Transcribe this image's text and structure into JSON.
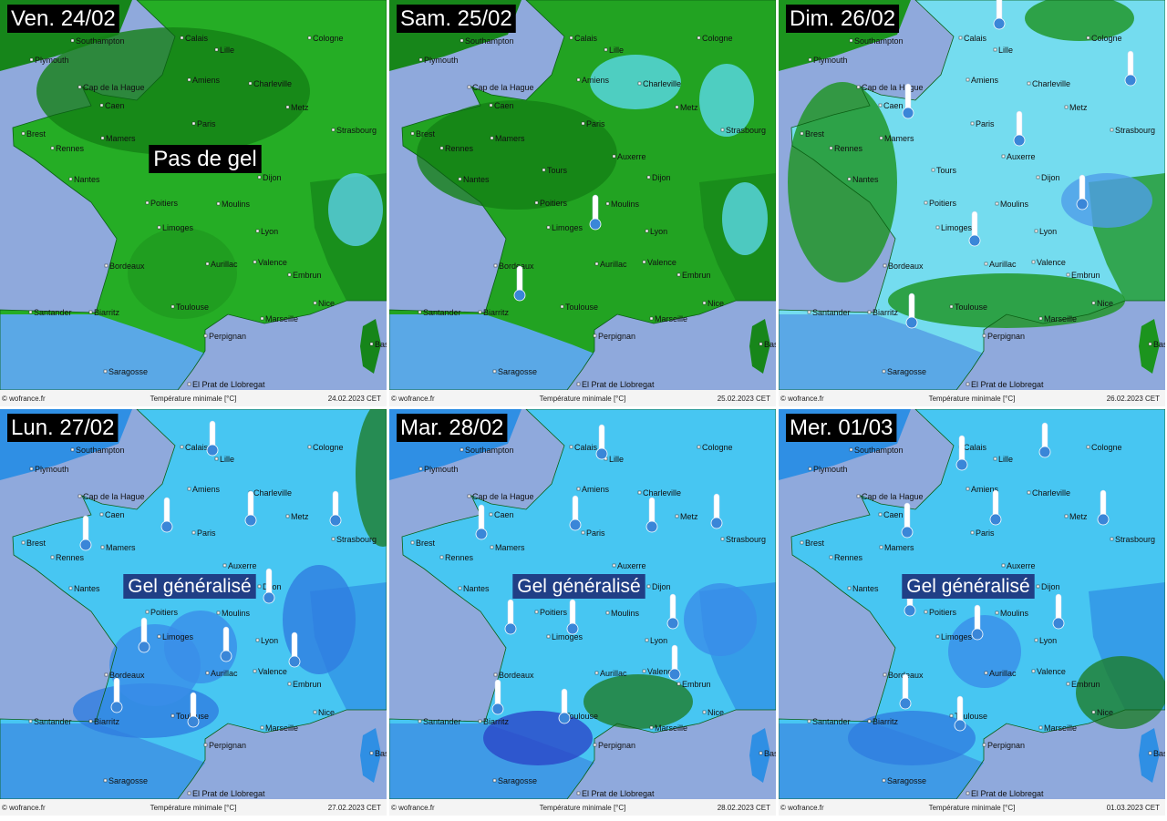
{
  "panels": [
    {
      "date": "Ven. 24/02",
      "footer_date": "24.02.2023 CET",
      "annotation": "Pas de gel"
    },
    {
      "date": "Sam. 25/02",
      "footer_date": "25.02.2023 CET"
    },
    {
      "date": "Dim. 26/02",
      "footer_date": "26.02.2023 CET"
    },
    {
      "date": "Lun. 27/02",
      "footer_date": "27.02.2023 CET",
      "annotation": "Gel généralisé"
    },
    {
      "date": "Mar. 28/02",
      "footer_date": "28.02.2023 CET",
      "annotation": "Gel généralisé"
    },
    {
      "date": "Mer. 01/03",
      "footer_date": "01.03.2023 CET",
      "annotation": "Gel généralisé"
    }
  ],
  "footer": {
    "credit": "© wofrance.fr",
    "legend": "Température minimale [°C]"
  },
  "cities": [
    "Southampton",
    "Plymouth",
    "Calais",
    "Lille",
    "Cologne",
    "Amiens",
    "Charleville",
    "Cap de la Hague",
    "Caen",
    "Metz",
    "Paris",
    "Brest",
    "Rennes",
    "Mamers",
    "Strasbourg",
    "Tours",
    "Auxerre",
    "Nantes",
    "Dijon",
    "Poitiers",
    "Moulins",
    "Limoges",
    "Lyon",
    "Aurillac",
    "Bordeaux",
    "Valence",
    "Embrun",
    "Nice",
    "Toulouse",
    "Biarritz",
    "Santander",
    "Marseille",
    "Perpignan",
    "Bastia",
    "Saragosse",
    "El Prat de Llobregat"
  ]
}
